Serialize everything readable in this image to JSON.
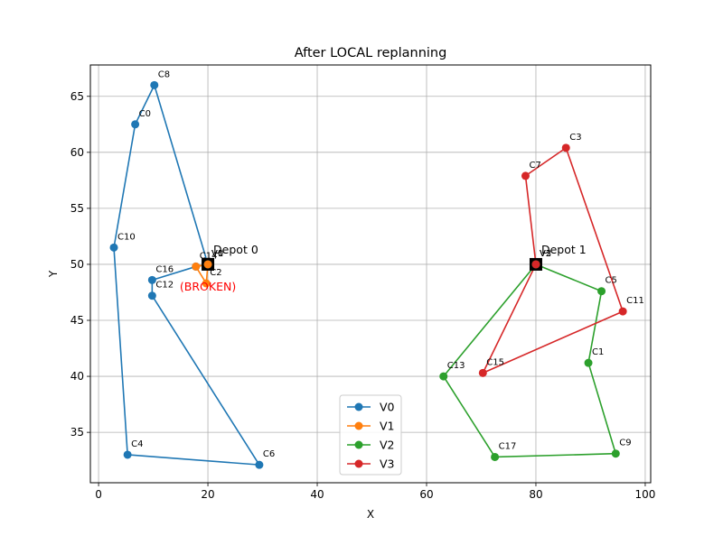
{
  "chart_data": {
    "type": "line",
    "title": "After LOCAL replanning",
    "xlabel": "X",
    "ylabel": "Y",
    "xlim": [
      -1.5,
      101
    ],
    "ylim": [
      30.5,
      67.8
    ],
    "xticks": [
      0,
      20,
      40,
      60,
      80,
      100
    ],
    "yticks": [
      35,
      40,
      45,
      50,
      55,
      60,
      65
    ],
    "grid": true,
    "legend_position": "lower center",
    "series": [
      {
        "name": "V0",
        "color": "#1f77b4",
        "points": [
          {
            "x": 20,
            "y": 50
          },
          {
            "x": 10.2,
            "y": 66.0,
            "label": "C8"
          },
          {
            "x": 6.7,
            "y": 62.5,
            "label": "C0"
          },
          {
            "x": 2.8,
            "y": 51.5,
            "label": "C10"
          },
          {
            "x": 5.3,
            "y": 33.0,
            "label": "C4"
          },
          {
            "x": 29.4,
            "y": 32.1,
            "label": "C6"
          },
          {
            "x": 9.8,
            "y": 47.2,
            "label": "C12"
          },
          {
            "x": 9.8,
            "y": 48.6,
            "label": "C16"
          },
          {
            "x": 17.8,
            "y": 49.8,
            "label": "C14"
          },
          {
            "x": 20,
            "y": 50
          }
        ]
      },
      {
        "name": "V1",
        "color": "#ff7f0e",
        "points": [
          {
            "x": 20,
            "y": 50,
            "label": "V1"
          },
          {
            "x": 17.8,
            "y": 49.8
          },
          {
            "x": 19.7,
            "y": 48.3,
            "label": "C2"
          },
          {
            "x": 20,
            "y": 50
          }
        ]
      },
      {
        "name": "V2",
        "color": "#2ca02c",
        "points": [
          {
            "x": 80,
            "y": 50,
            "label": "V2"
          },
          {
            "x": 92.0,
            "y": 47.6,
            "label": "C5"
          },
          {
            "x": 89.6,
            "y": 41.2,
            "label": "C1"
          },
          {
            "x": 94.6,
            "y": 33.1,
            "label": "C9"
          },
          {
            "x": 72.5,
            "y": 32.8,
            "label": "C17"
          },
          {
            "x": 63.1,
            "y": 40.0,
            "label": "C13"
          },
          {
            "x": 80,
            "y": 50
          }
        ]
      },
      {
        "name": "V3",
        "color": "#d62728",
        "points": [
          {
            "x": 80,
            "y": 50,
            "label": "V3"
          },
          {
            "x": 70.3,
            "y": 40.3,
            "label": "C15"
          },
          {
            "x": 95.9,
            "y": 45.8,
            "label": "C11"
          },
          {
            "x": 85.5,
            "y": 60.4,
            "label": "C3"
          },
          {
            "x": 78.1,
            "y": 57.9,
            "label": "C7"
          },
          {
            "x": 80,
            "y": 50
          }
        ]
      }
    ],
    "depots": [
      {
        "x": 20,
        "y": 50,
        "label": "Depot 0"
      },
      {
        "x": 80,
        "y": 50,
        "label": "Depot 1"
      }
    ],
    "annotations": [
      {
        "text": "V0",
        "x": 20,
        "y": 50
      },
      {
        "text": "(BROKEN)",
        "x": 20,
        "y": 48.3,
        "color": "#ff0000"
      }
    ]
  }
}
